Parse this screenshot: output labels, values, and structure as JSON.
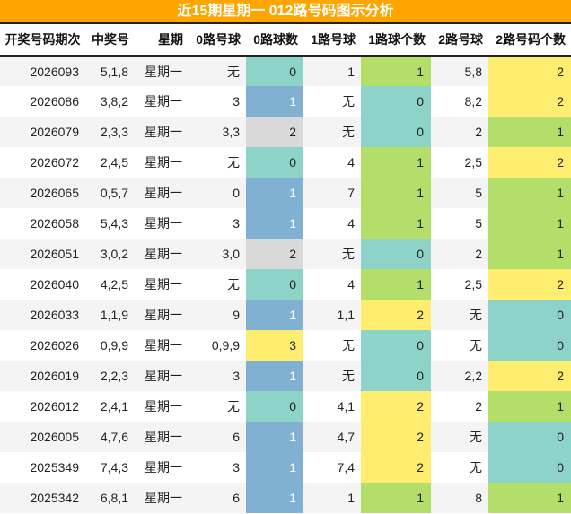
{
  "title": "近15期星期一 012路号码图示分析",
  "columns": [
    "开奖号码期次",
    "中奖号",
    "星期",
    "0路号球",
    "0路球数",
    "1路号球",
    "1路球个数",
    "2路号球",
    "2路号码个数"
  ],
  "colors": {
    "header_bg": "#fea500",
    "count_0": "#8dd3c7",
    "count_1_col0": "#80b1d3",
    "count_1": "#b3de69",
    "count_2_col0": "#d9d9d9",
    "count_2": "#ffed6f",
    "count_3": "#ffed6f"
  },
  "rows": [
    {
      "period": "2026093",
      "number": "5,1,8",
      "weekday": "星期一",
      "r0_balls": "无",
      "r0_count": "0",
      "r1_balls": "1",
      "r1_count": "1",
      "r2_balls": "5,8",
      "r2_count": "2"
    },
    {
      "period": "2026086",
      "number": "3,8,2",
      "weekday": "星期一",
      "r0_balls": "3",
      "r0_count": "1",
      "r1_balls": "无",
      "r1_count": "0",
      "r2_balls": "8,2",
      "r2_count": "2"
    },
    {
      "period": "2026079",
      "number": "2,3,3",
      "weekday": "星期一",
      "r0_balls": "3,3",
      "r0_count": "2",
      "r1_balls": "无",
      "r1_count": "0",
      "r2_balls": "2",
      "r2_count": "1"
    },
    {
      "period": "2026072",
      "number": "2,4,5",
      "weekday": "星期一",
      "r0_balls": "无",
      "r0_count": "0",
      "r1_balls": "4",
      "r1_count": "1",
      "r2_balls": "2,5",
      "r2_count": "2"
    },
    {
      "period": "2026065",
      "number": "0,5,7",
      "weekday": "星期一",
      "r0_balls": "0",
      "r0_count": "1",
      "r1_balls": "7",
      "r1_count": "1",
      "r2_balls": "5",
      "r2_count": "1"
    },
    {
      "period": "2026058",
      "number": "5,4,3",
      "weekday": "星期一",
      "r0_balls": "3",
      "r0_count": "1",
      "r1_balls": "4",
      "r1_count": "1",
      "r2_balls": "5",
      "r2_count": "1"
    },
    {
      "period": "2026051",
      "number": "3,0,2",
      "weekday": "星期一",
      "r0_balls": "3,0",
      "r0_count": "2",
      "r1_balls": "无",
      "r1_count": "0",
      "r2_balls": "2",
      "r2_count": "1"
    },
    {
      "period": "2026040",
      "number": "4,2,5",
      "weekday": "星期一",
      "r0_balls": "无",
      "r0_count": "0",
      "r1_balls": "4",
      "r1_count": "1",
      "r2_balls": "2,5",
      "r2_count": "2"
    },
    {
      "period": "2026033",
      "number": "1,1,9",
      "weekday": "星期一",
      "r0_balls": "9",
      "r0_count": "1",
      "r1_balls": "1,1",
      "r1_count": "2",
      "r2_balls": "无",
      "r2_count": "0"
    },
    {
      "period": "2026026",
      "number": "0,9,9",
      "weekday": "星期一",
      "r0_balls": "0,9,9",
      "r0_count": "3",
      "r1_balls": "无",
      "r1_count": "0",
      "r2_balls": "无",
      "r2_count": "0"
    },
    {
      "period": "2026019",
      "number": "2,2,3",
      "weekday": "星期一",
      "r0_balls": "3",
      "r0_count": "1",
      "r1_balls": "无",
      "r1_count": "0",
      "r2_balls": "2,2",
      "r2_count": "2"
    },
    {
      "period": "2026012",
      "number": "2,4,1",
      "weekday": "星期一",
      "r0_balls": "无",
      "r0_count": "0",
      "r1_balls": "4,1",
      "r1_count": "2",
      "r2_balls": "2",
      "r2_count": "1"
    },
    {
      "period": "2026005",
      "number": "4,7,6",
      "weekday": "星期一",
      "r0_balls": "6",
      "r0_count": "1",
      "r1_balls": "4,7",
      "r1_count": "2",
      "r2_balls": "无",
      "r2_count": "0"
    },
    {
      "period": "2025349",
      "number": "7,4,3",
      "weekday": "星期一",
      "r0_balls": "3",
      "r0_count": "1",
      "r1_balls": "7,4",
      "r1_count": "2",
      "r2_balls": "无",
      "r2_count": "0"
    },
    {
      "period": "2025342",
      "number": "6,8,1",
      "weekday": "星期一",
      "r0_balls": "6",
      "r0_count": "1",
      "r1_balls": "1",
      "r1_count": "1",
      "r2_balls": "8",
      "r2_count": "1"
    }
  ]
}
